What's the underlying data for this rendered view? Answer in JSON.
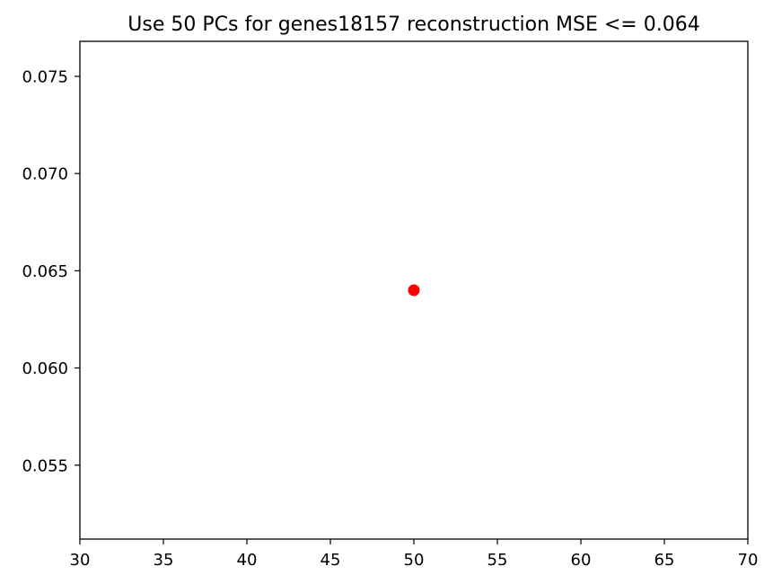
{
  "chart_data": {
    "type": "scatter",
    "title": "Use 50 PCs for genes18157 reconstruction MSE <= 0.064",
    "xlabel": "",
    "ylabel": "",
    "xlim": [
      30,
      70
    ],
    "ylim": [
      0.0512,
      0.0768
    ],
    "x_ticks": [
      30,
      35,
      40,
      45,
      50,
      55,
      60,
      65,
      70
    ],
    "x_tick_labels": [
      "30",
      "35",
      "40",
      "45",
      "50",
      "55",
      "60",
      "65",
      "70"
    ],
    "y_ticks": [
      0.055,
      0.06,
      0.065,
      0.07,
      0.075
    ],
    "y_tick_labels": [
      "0.055",
      "0.060",
      "0.065",
      "0.070",
      "0.075"
    ],
    "grid": false,
    "series": [
      {
        "x": [
          50
        ],
        "y": [
          0.064
        ],
        "color": "#ff0000",
        "marker": "circle"
      }
    ]
  }
}
